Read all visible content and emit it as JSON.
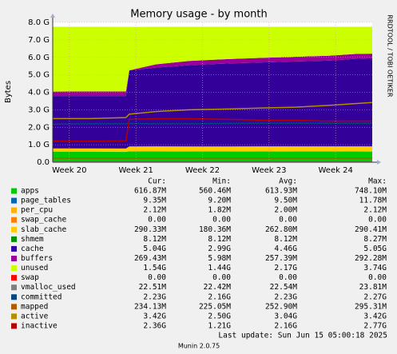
{
  "chart_data": {
    "type": "stacked_area",
    "title": "Memory usage - by month",
    "y_label": "Bytes",
    "side_text": "RRDTOOL / TOBI OETIKER",
    "x": [
      19.75,
      20.3,
      20.85,
      20.9,
      21.3,
      21.8,
      22.4,
      22.9,
      23.4,
      23.9,
      24.3,
      24.55
    ],
    "xlim": [
      19.75,
      24.55
    ],
    "xticks": [
      {
        "value": 20,
        "label": "Week 20"
      },
      {
        "value": 21,
        "label": "Week 21"
      },
      {
        "value": 22,
        "label": "Week 22"
      },
      {
        "value": 23,
        "label": "Week 23"
      },
      {
        "value": 24,
        "label": "Week 24"
      }
    ],
    "ylim": [
      0,
      8589934592
    ],
    "yticks": [
      {
        "value": 0,
        "label": "0.0"
      },
      {
        "value": 1073741824,
        "label": "1.0 G"
      },
      {
        "value": 2147483648,
        "label": "2.0 G"
      },
      {
        "value": 3221225472,
        "label": "3.0 G"
      },
      {
        "value": 4294967296,
        "label": "4.0 G"
      },
      {
        "value": 5368709120,
        "label": "5.0 G"
      },
      {
        "value": 6442450944,
        "label": "6.0 G"
      },
      {
        "value": 7516192768,
        "label": "7.0 G"
      },
      {
        "value": 8589934592,
        "label": "8.0 G"
      }
    ],
    "grid": true,
    "stats_header": [
      "Cur:",
      "Min:",
      "Avg:",
      "Max:"
    ],
    "series": [
      {
        "name": "apps",
        "color": "#00cc00",
        "kind": "area",
        "values": [
          640000000,
          640000000,
          630000000,
          660000000,
          660000000,
          650000000,
          650000000,
          660000000,
          650000000,
          650000000,
          650000000,
          647000000
        ],
        "stats": [
          "616.87M",
          "560.46M",
          "613.93M",
          "748.10M"
        ]
      },
      {
        "name": "page_tables",
        "color": "#0066b3",
        "kind": "area",
        "values": [
          9800000,
          9800000,
          9800000,
          9800000,
          9800000,
          9800000,
          9800000,
          9800000,
          9800000,
          9800000,
          9800000,
          9800000
        ],
        "stats": [
          "9.35M",
          "9.20M",
          "9.50M",
          "11.78M"
        ]
      },
      {
        "name": "per_cpu",
        "color": "#ffb000",
        "kind": "area",
        "values": [
          2200000,
          2200000,
          2200000,
          2200000,
          2200000,
          2200000,
          2200000,
          2200000,
          2200000,
          2200000,
          2200000,
          2200000
        ],
        "stats": [
          "2.12M",
          "1.82M",
          "2.00M",
          "2.12M"
        ]
      },
      {
        "name": "swap_cache",
        "color": "#ff8000",
        "kind": "area",
        "values": [
          0,
          0,
          0,
          0,
          0,
          0,
          0,
          0,
          0,
          0,
          0,
          0
        ],
        "stats": [
          "0.00",
          "0.00",
          "0.00",
          "0.00"
        ]
      },
      {
        "name": "slab_cache",
        "color": "#ffcc00",
        "kind": "area",
        "values": [
          190000000,
          190000000,
          195000000,
          290000000,
          300000000,
          300000000,
          300000000,
          300000000,
          310000000,
          310000000,
          310000000,
          310000000
        ],
        "stats": [
          "290.33M",
          "180.36M",
          "262.80M",
          "290.41M"
        ]
      },
      {
        "name": "shmem",
        "color": "#008f00",
        "kind": "area",
        "values": [
          8500000,
          8500000,
          8500000,
          8500000,
          8500000,
          8500000,
          8500000,
          8500000,
          8500000,
          8500000,
          8500000,
          8500000
        ],
        "stats": [
          "8.12M",
          "8.12M",
          "8.12M",
          "8.27M"
        ]
      },
      {
        "name": "cache",
        "color": "#330099",
        "kind": "area",
        "values": [
          3220000000,
          3220000000,
          3220000000,
          4670000000,
          4830000000,
          4990000000,
          5100000000,
          5150000000,
          5210000000,
          5260000000,
          5370000000,
          5410000000
        ],
        "stats": [
          "5.04G",
          "2.99G",
          "4.46G",
          "5.05G"
        ]
      },
      {
        "name": "buffers",
        "color": "#990099",
        "kind": "area",
        "values": [
          270000000,
          280000000,
          280000000,
          6000000,
          200000000,
          260000000,
          270000000,
          280000000,
          290000000,
          300000000,
          300000000,
          282000000
        ],
        "stats": [
          "269.43M",
          "5.98M",
          "257.39M",
          "292.28M"
        ]
      },
      {
        "name": "unused",
        "color": "#ccff00",
        "kind": "area",
        "values": [
          3980000000,
          3970000000,
          3970000000,
          2670000000,
          2310000000,
          2100000000,
          1980000000,
          1910000000,
          1840000000,
          1780000000,
          1670000000,
          1650000000
        ],
        "stats": [
          "1.54G",
          "1.44G",
          "2.17G",
          "3.74G"
        ]
      },
      {
        "name": "swap",
        "color": "#ff0000",
        "kind": "area",
        "values": [
          0,
          0,
          0,
          0,
          0,
          0,
          0,
          0,
          0,
          0,
          0,
          0
        ],
        "stats": [
          "0.00",
          "0.00",
          "0.00",
          "0.00"
        ]
      },
      {
        "name": "vmalloc_used",
        "color": "#808080",
        "kind": "line",
        "values": [
          24000000,
          24000000,
          24000000,
          24000000,
          24000000,
          24000000,
          24000000,
          24000000,
          24000000,
          24000000,
          24000000,
          24000000
        ],
        "stats": [
          "22.51M",
          "22.42M",
          "22.54M",
          "23.81M"
        ]
      },
      {
        "name": "committed",
        "color": "#00487d",
        "kind": "line",
        "values": [
          2340000000,
          2360000000,
          2360000000,
          2380000000,
          2360000000,
          2360000000,
          2380000000,
          2390000000,
          2390000000,
          2390000000,
          2390000000,
          2390000000
        ],
        "stats": [
          "2.23G",
          "2.16G",
          "2.23G",
          "2.27G"
        ]
      },
      {
        "name": "mapped",
        "color": "#b35a00",
        "kind": "line",
        "values": [
          250000000,
          250000000,
          250000000,
          250000000,
          250000000,
          250000000,
          250000000,
          250000000,
          250000000,
          250000000,
          250000000,
          250000000
        ],
        "stats": [
          "234.13M",
          "225.05M",
          "252.90M",
          "295.31M"
        ]
      },
      {
        "name": "active",
        "color": "#b38f00",
        "kind": "line",
        "values": [
          2680000000,
          2680000000,
          2740000000,
          2950000000,
          3110000000,
          3220000000,
          3270000000,
          3330000000,
          3380000000,
          3490000000,
          3600000000,
          3670000000
        ],
        "stats": [
          "3.42G",
          "2.50G",
          "3.04G",
          "3.42G"
        ]
      },
      {
        "name": "inactive",
        "color": "#b30000",
        "kind": "line",
        "values": [
          1300000000,
          1290000000,
          1310000000,
          2630000000,
          2680000000,
          2680000000,
          2630000000,
          2580000000,
          2580000000,
          2520000000,
          2530000000,
          2530000000
        ],
        "stats": [
          "2.36G",
          "1.21G",
          "2.16G",
          "2.77G"
        ]
      }
    ],
    "last_update": "Last update: Sun Jun 15 05:00:18 2025",
    "footer": "Munin 2.0.75"
  }
}
